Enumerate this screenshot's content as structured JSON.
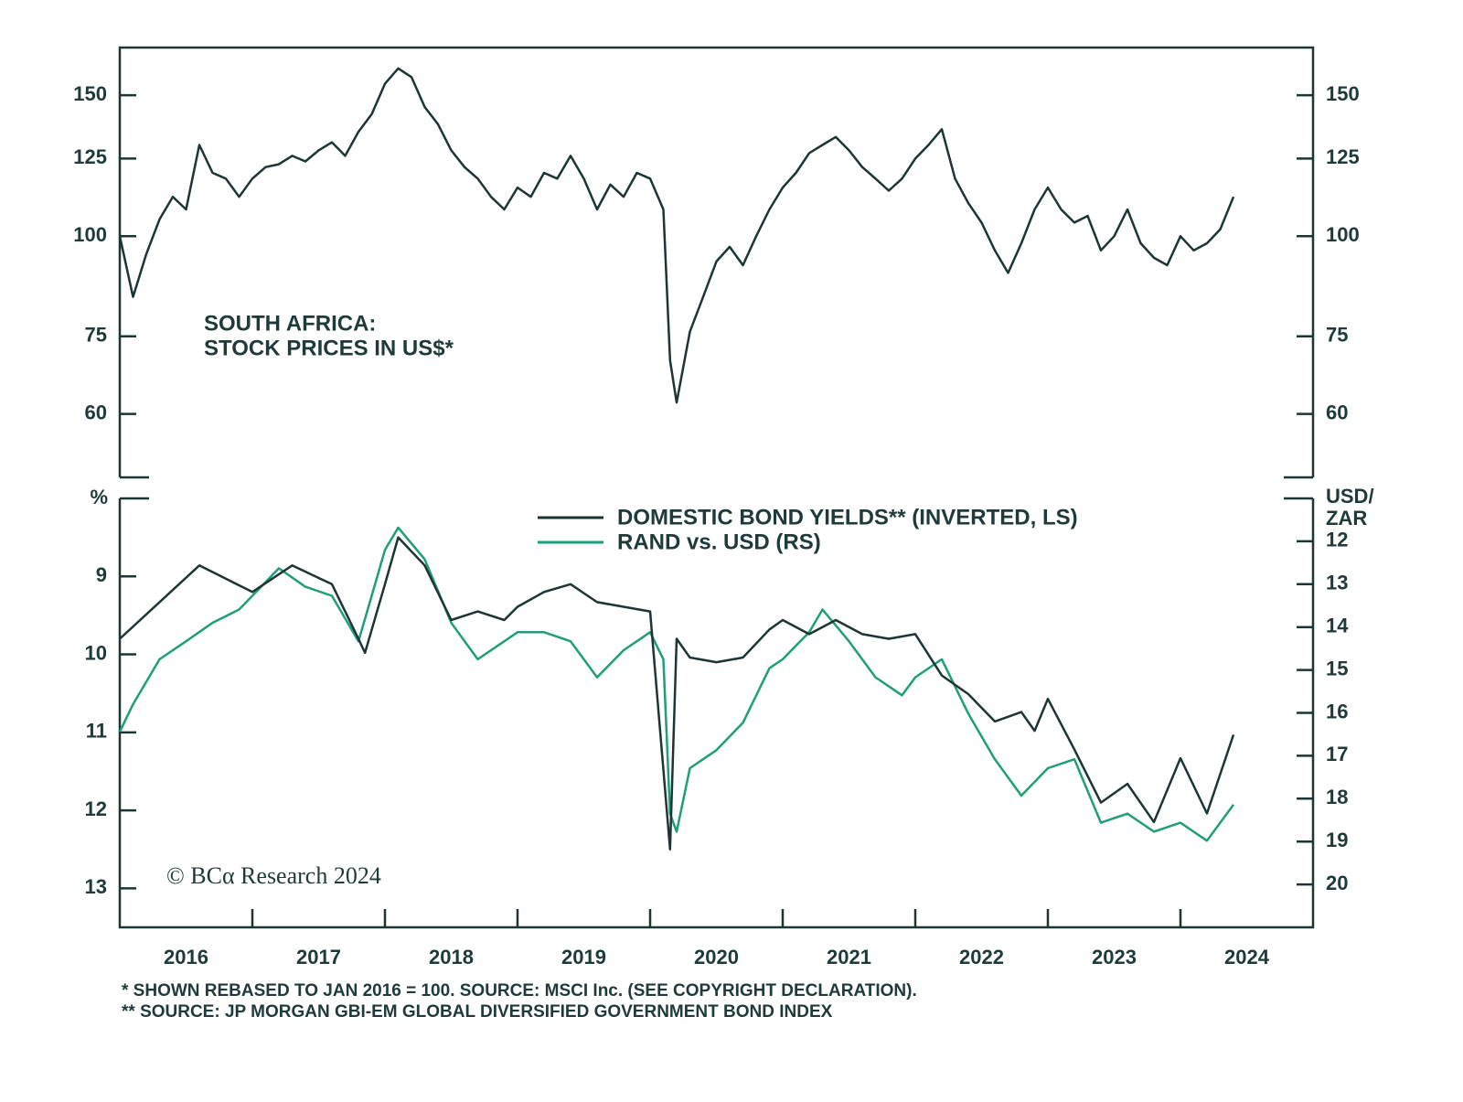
{
  "chart_data": [
    {
      "type": "line",
      "title": "SOUTH AFRICA:",
      "subtitle": "STOCK PRICES IN US$*",
      "log_scale": true,
      "xlim": [
        2016,
        2025
      ],
      "ylim": [
        50,
        172
      ],
      "yticks": [
        60,
        75,
        100,
        125,
        150
      ],
      "y2lim": [
        50,
        172
      ],
      "y2ticks": [
        60,
        75,
        100,
        125,
        150
      ],
      "series": [
        {
          "name": null,
          "color": "#1c3535",
          "x": [
            2016.0,
            2016.1,
            2016.2,
            2016.3,
            2016.4,
            2016.5,
            2016.6,
            2016.7,
            2016.8,
            2016.9,
            2017.0,
            2017.1,
            2017.2,
            2017.3,
            2017.4,
            2017.5,
            2017.6,
            2017.7,
            2017.8,
            2017.9,
            2018.0,
            2018.1,
            2018.2,
            2018.3,
            2018.4,
            2018.5,
            2018.6,
            2018.7,
            2018.8,
            2018.9,
            2019.0,
            2019.1,
            2019.2,
            2019.3,
            2019.4,
            2019.5,
            2019.6,
            2019.7,
            2019.8,
            2019.9,
            2020.0,
            2020.1,
            2020.15,
            2020.2,
            2020.3,
            2020.4,
            2020.5,
            2020.6,
            2020.7,
            2020.8,
            2020.9,
            2021.0,
            2021.1,
            2021.2,
            2021.3,
            2021.4,
            2021.5,
            2021.6,
            2021.7,
            2021.8,
            2021.9,
            2022.0,
            2022.1,
            2022.2,
            2022.3,
            2022.4,
            2022.5,
            2022.6,
            2022.7,
            2022.8,
            2022.9,
            2023.0,
            2023.1,
            2023.2,
            2023.3,
            2023.4,
            2023.5,
            2023.6,
            2023.7,
            2023.8,
            2023.9,
            2024.0,
            2024.1,
            2024.2,
            2024.3,
            2024.4
          ],
          "values": [
            100,
            84,
            95,
            105,
            112,
            108,
            130,
            120,
            118,
            112,
            118,
            122,
            123,
            126,
            124,
            128,
            131,
            126,
            135,
            142,
            155,
            162,
            158,
            145,
            138,
            128,
            122,
            118,
            112,
            108,
            115,
            112,
            120,
            118,
            126,
            118,
            108,
            116,
            112,
            120,
            118,
            108,
            70,
            62,
            76,
            84,
            93,
            97,
            92,
            100,
            108,
            115,
            120,
            127,
            130,
            133,
            128,
            122,
            118,
            114,
            118,
            125,
            130,
            136,
            118,
            110,
            104,
            96,
            90,
            98,
            108,
            115,
            108,
            104,
            106,
            96,
            100,
            108,
            98,
            94,
            92,
            100,
            96,
            98,
            102,
            112
          ]
        }
      ]
    },
    {
      "type": "line",
      "xlim": [
        2016,
        2025
      ],
      "ylabel": "%",
      "y2label": [
        "USD/",
        "ZAR"
      ],
      "ylim": [
        13.5,
        8
      ],
      "yticks": [
        9,
        10,
        11,
        12,
        13
      ],
      "y2lim": [
        21,
        11
      ],
      "y2ticks": [
        12,
        13,
        14,
        15,
        16,
        17,
        18,
        19,
        20
      ],
      "xticks": [
        {
          "value": 2016.5,
          "label": "2016"
        },
        {
          "value": 2017.5,
          "label": "2017"
        },
        {
          "value": 2018.5,
          "label": "2018"
        },
        {
          "value": 2019.5,
          "label": "2019"
        },
        {
          "value": 2020.5,
          "label": "2020"
        },
        {
          "value": 2021.5,
          "label": "2021"
        },
        {
          "value": 2022.5,
          "label": "2022"
        },
        {
          "value": 2023.5,
          "label": "2023"
        },
        {
          "value": 2024.5,
          "label": "2024"
        }
      ],
      "series": [
        {
          "name": "DOMESTIC BOND YIELDS** (INVERTED, LS)",
          "color": "#1c3535",
          "x": [
            2016.0,
            2016.3,
            2016.6,
            2017.0,
            2017.3,
            2017.6,
            2017.8,
            2017.85,
            2018.0,
            2018.1,
            2018.3,
            2018.5,
            2018.7,
            2018.9,
            2019.0,
            2019.2,
            2019.4,
            2019.6,
            2019.8,
            2020.0,
            2020.15,
            2020.2,
            2020.3,
            2020.5,
            2020.7,
            2020.9,
            2021.0,
            2021.2,
            2021.4,
            2021.6,
            2021.8,
            2022.0,
            2022.2,
            2022.4,
            2022.6,
            2022.8,
            2022.9,
            2023.0,
            2023.2,
            2023.4,
            2023.6,
            2023.8,
            2024.0,
            2024.2,
            2024.4
          ],
          "values": [
            9.8,
            9.33,
            8.86,
            9.2,
            8.86,
            9.1,
            9.8,
            9.98,
            9.1,
            8.5,
            8.86,
            9.56,
            9.45,
            9.56,
            9.39,
            9.2,
            9.1,
            9.33,
            9.39,
            9.45,
            12.5,
            9.8,
            10.04,
            10.1,
            10.04,
            9.68,
            9.56,
            9.74,
            9.56,
            9.74,
            9.8,
            9.74,
            10.27,
            10.51,
            10.86,
            10.74,
            10.98,
            10.57,
            11.22,
            11.9,
            11.66,
            12.15,
            11.33,
            12.04,
            11.03
          ]
        },
        {
          "name": "RAND vs. USD (RS)",
          "color": "#1f9e7a",
          "x": [
            2016.0,
            2016.1,
            2016.3,
            2016.5,
            2016.7,
            2016.9,
            2017.0,
            2017.2,
            2017.4,
            2017.6,
            2017.8,
            2017.9,
            2018.0,
            2018.1,
            2018.3,
            2018.5,
            2018.7,
            2018.9,
            2019.0,
            2019.2,
            2019.4,
            2019.6,
            2019.8,
            2020.0,
            2020.1,
            2020.15,
            2020.2,
            2020.3,
            2020.5,
            2020.7,
            2020.9,
            2021.0,
            2021.2,
            2021.3,
            2021.5,
            2021.7,
            2021.9,
            2022.0,
            2022.2,
            2022.4,
            2022.6,
            2022.8,
            2023.0,
            2023.2,
            2023.4,
            2023.6,
            2023.8,
            2024.0,
            2024.2,
            2024.4
          ],
          "values": [
            16.44,
            15.8,
            14.75,
            14.33,
            13.9,
            13.59,
            13.27,
            12.63,
            13.06,
            13.27,
            14.33,
            13.27,
            12.2,
            11.68,
            12.42,
            13.9,
            14.75,
            14.33,
            14.12,
            14.12,
            14.33,
            15.17,
            14.54,
            14.12,
            14.75,
            18.35,
            18.77,
            17.29,
            16.87,
            16.23,
            14.96,
            14.75,
            14.12,
            13.59,
            14.33,
            15.17,
            15.59,
            15.17,
            14.75,
            16.02,
            17.08,
            17.93,
            17.29,
            17.08,
            18.56,
            18.35,
            18.77,
            18.56,
            18.98,
            18.14
          ]
        }
      ]
    }
  ],
  "watermark": "© BCα Research 2024",
  "footnotes": [
    "* SHOWN REBASED TO JAN 2016 = 100. SOURCE: MSCI Inc. (SEE COPYRIGHT DECLARATION).",
    "** SOURCE: JP MORGAN GBI-EM GLOBAL DIVERSIFIED GOVERNMENT BOND INDEX"
  ]
}
